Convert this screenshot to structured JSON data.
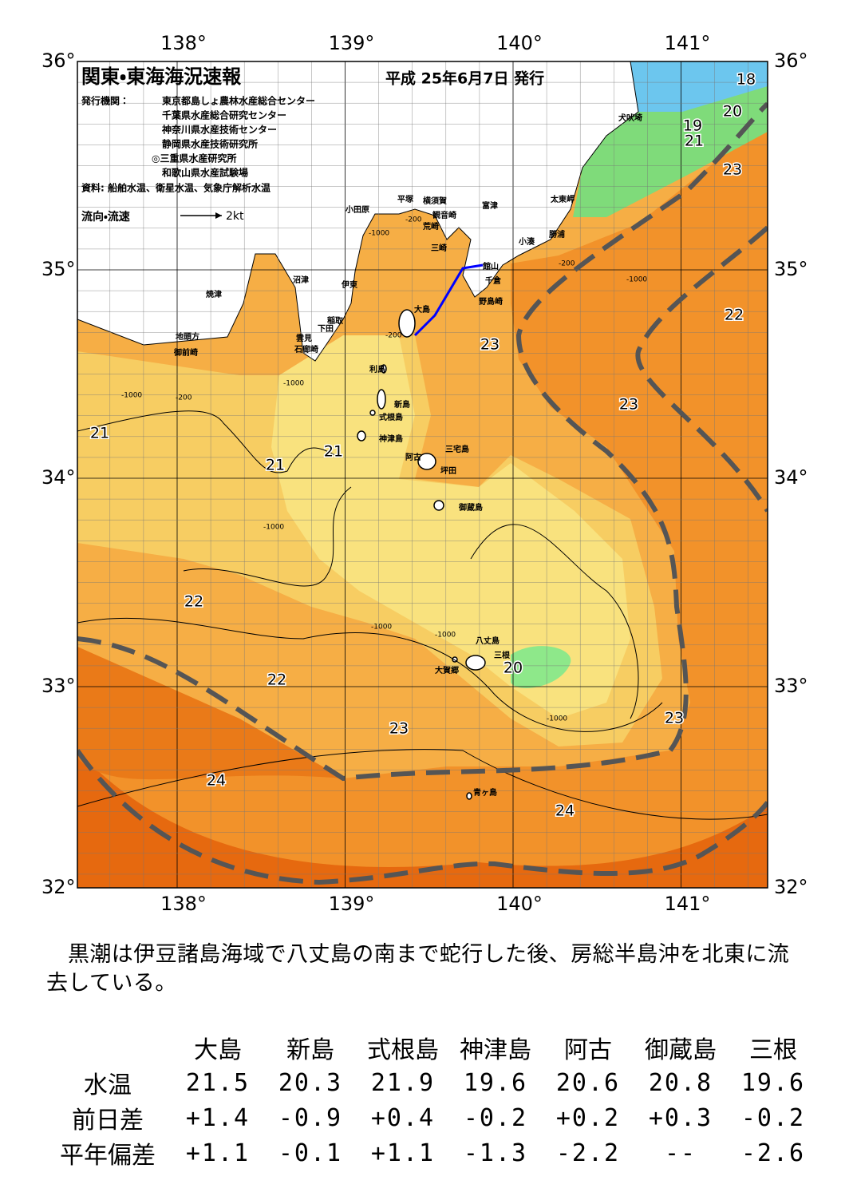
{
  "map": {
    "title": "関東・東海海況速報",
    "date": "平成 25年6月7日 発行",
    "publisher_label": "発行機関：",
    "publishers": [
      "東京都島しょ農林水産総合センター",
      "千葉県水産総合研究センター",
      "神奈川県水産技術センター",
      "静岡県水産技術研究所",
      "◎三重県水産研究所",
      "和歌山県水産試験場"
    ],
    "source": "資料: 船舶水温、衛星水温、気象庁解析水温",
    "legend_label": "流向・流速",
    "legend_scale": "2kt",
    "lat_labels": [
      "36°",
      "35°",
      "34°",
      "33°",
      "32°"
    ],
    "lon_labels": [
      "138°",
      "139°",
      "140°",
      "141°"
    ],
    "place_labels": [
      "犬吠埼",
      "太東岬",
      "勝浦",
      "小湊",
      "富津",
      "観音崎",
      "横須賀",
      "平塚",
      "小田原",
      "荒崎",
      "三崎",
      "館山",
      "千倉",
      "野島崎",
      "大島",
      "沼津",
      "伊東",
      "焼津",
      "稲取",
      "下田",
      "雲見",
      "石廊崎",
      "地頭方",
      "御前崎",
      "利島",
      "新島",
      "式根島",
      "神津島",
      "三宅島",
      "阿古",
      "坪田",
      "御蔵島",
      "八丈島",
      "三根",
      "大賀郷",
      "青ヶ島"
    ],
    "isotherm_labels": [
      "18",
      "20",
      "19",
      "21",
      "23",
      "22",
      "23",
      "23",
      "21",
      "21",
      "21",
      "22",
      "22",
      "20",
      "23",
      "23",
      "24",
      "24"
    ],
    "depth_labels": [
      "-200",
      "-1000",
      "-200",
      "-200",
      "-1000",
      "-1000",
      "-200",
      "-1000",
      "-1000",
      "-1000",
      "-1000",
      "-1000"
    ]
  },
  "description": "黒潮は伊豆諸島海域で八丈島の南まで蛇行した後、房総半島沖を北東に流去している。",
  "table": {
    "columns": [
      "大島",
      "新島",
      "式根島",
      "神津島",
      "阿古",
      "御蔵島",
      "三根"
    ],
    "rows": [
      {
        "label": "水温",
        "values": [
          "21.5",
          "20.3",
          "21.9",
          "19.6",
          "20.6",
          "20.8",
          "19.6"
        ]
      },
      {
        "label": "前日差",
        "values": [
          "+1.4",
          "-0.9",
          "+0.4",
          "-0.2",
          "+0.2",
          "+0.3",
          "-0.2"
        ]
      },
      {
        "label": "平年偏差",
        "values": [
          "+1.1",
          "-0.1",
          "+1.1",
          "-1.3",
          "-2.2",
          "--",
          "-2.6"
        ]
      }
    ]
  }
}
